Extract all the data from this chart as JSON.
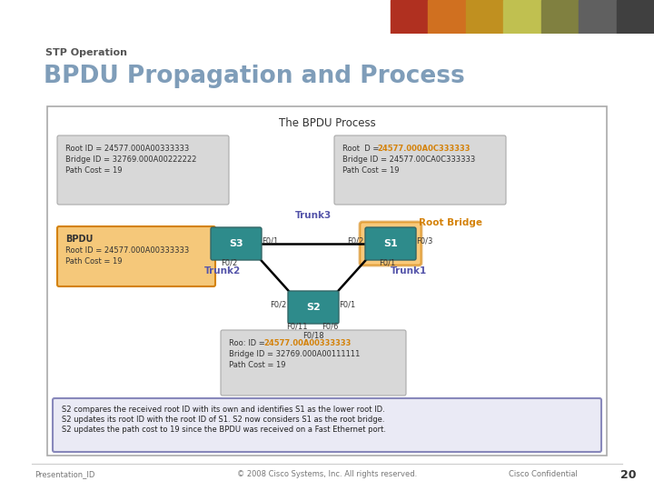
{
  "title_sub": "STP Operation",
  "title_main": "BPDU Propagation and Process",
  "bg_color": "#ffffff",
  "header_bg": "#1a1a1a",
  "slide_number": "20",
  "footer_left": "Presentation_ID",
  "footer_center": "© 2008 Cisco Systems, Inc. All rights reserved.",
  "footer_right": "Cisco Confidential",
  "diagram_title": "The BPDU Process",
  "box_s3_label": "S3",
  "box_s1_label": "S1",
  "box_s2_label": "S2",
  "switch_color_teal": "#2e8b8b",
  "switch_color_orange_border": "#d4820a",
  "switch_color_orange_fill": "#f5a623",
  "trunk3_label": "Trunk3",
  "trunk2_label": "Trunk2",
  "trunk1_label": "Trunk1",
  "root_bridge_label": "Root Bridge",
  "title_color": "#7f9db9",
  "title_sub_color": "#555555",
  "trunk_color": "#5555aa",
  "orange_text": "#d4820a",
  "info_box_bg": "#d8d8d8",
  "info_box_edge": "#aaaaaa",
  "bpdu_box_bg": "#f5c87a",
  "bpdu_box_edge": "#d4820a",
  "summary_box_bg": "#eaeaf5",
  "summary_box_edge": "#8888bb",
  "header_colors": [
    "#c0392b",
    "#d4700a",
    "#e8b84b",
    "#c8d840",
    "#50a860",
    "#2888c0",
    "#484848"
  ],
  "top_left_box_line1": "Root ID = 24577.000A00333333",
  "top_left_box_line2": "Bridge ID = 32769.000A00222222",
  "top_left_box_line3": "Path Cost = 19",
  "top_right_box_pre": "Root  D = ",
  "top_right_box_orange": "24577.000A0C333333",
  "top_right_box_line2": "Bridge ID = 24577.00CA0C333333",
  "top_right_box_line3": "Path Cost = 19",
  "bpdu_line1": "BPDU",
  "bpdu_line2": "Root ID = 24577.000A00333333",
  "bpdu_line3": "Path Cost = 19",
  "bottom_box_pre": "Roo: ID = ",
  "bottom_box_orange": "24577.00A00333333",
  "bottom_box_line2": "Bridge ID = 32769.000A00111111",
  "bottom_box_line3": "Path Cost = 19",
  "summary_line1": "S2 compares the received root ID with its own and identifies S1 as the lower root ID.",
  "summary_line2": "S2 updates its root ID with the root ID of S1. S2 now considers S1 as the root bridge.",
  "summary_line3": "S2 updates the path cost to 19 since the BPDU was received on a Fast Ethernet port."
}
